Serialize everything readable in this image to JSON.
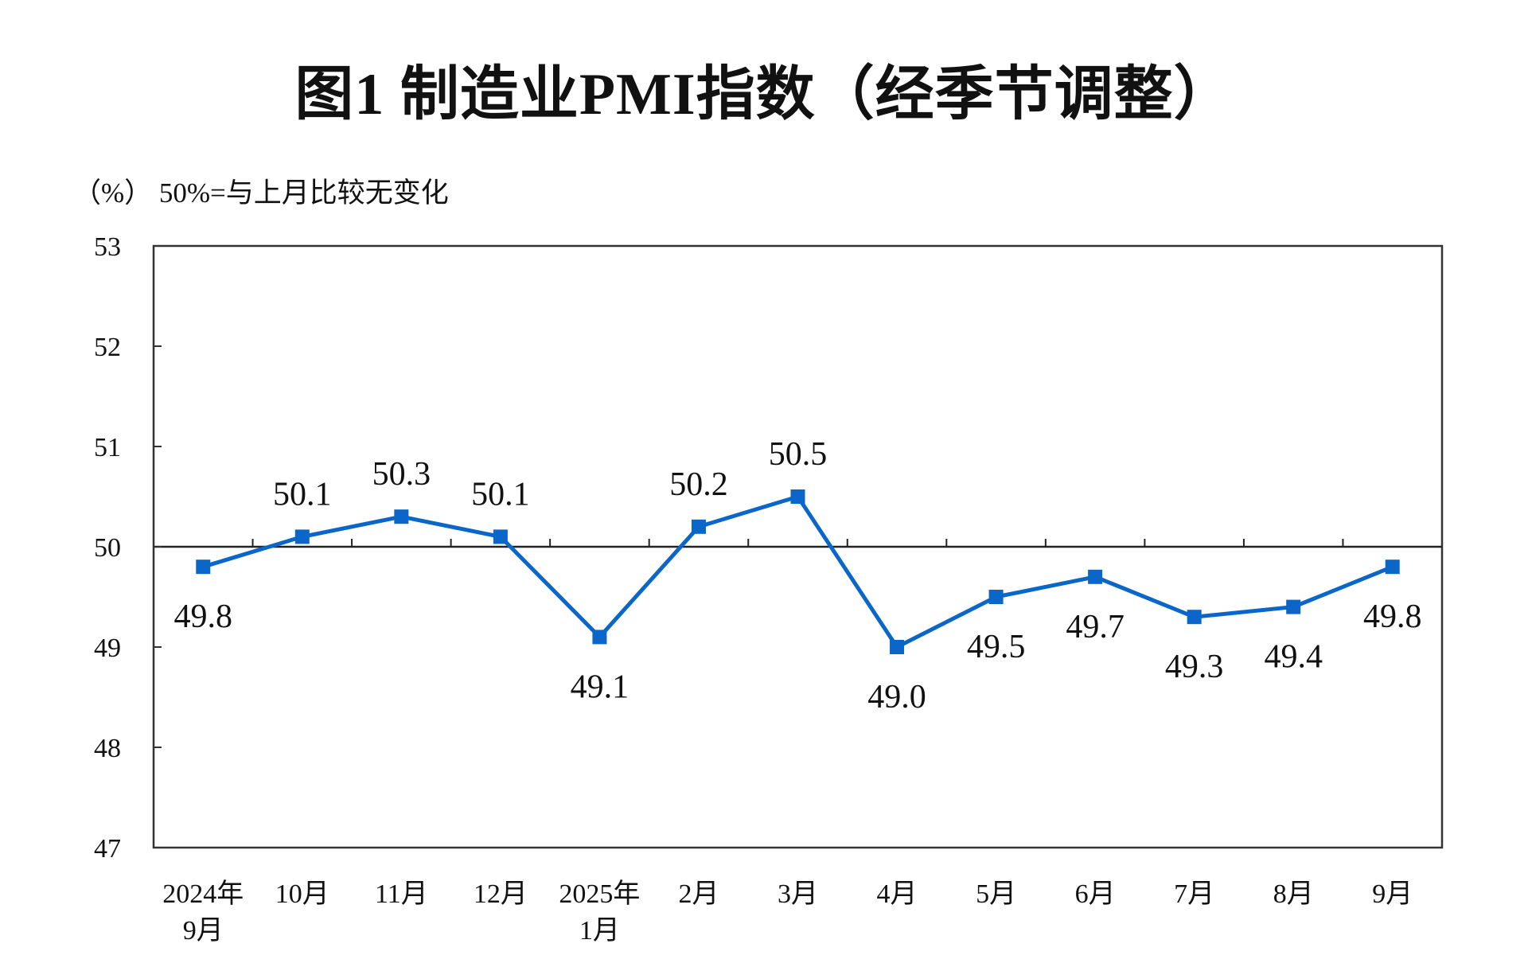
{
  "chart_data": {
    "type": "line",
    "title": "图1  制造业PMI指数（经季节调整）",
    "ylabel": "（%）  50%=与上月比较无变化",
    "xlabel": "",
    "ylim": [
      47,
      53
    ],
    "yticks": [
      47,
      48,
      49,
      50,
      51,
      52,
      53
    ],
    "reference_line": 50,
    "grid": false,
    "categories": [
      [
        "2024年",
        "9月"
      ],
      [
        "10月"
      ],
      [
        "11月"
      ],
      [
        "12月"
      ],
      [
        "2025年",
        "1月"
      ],
      [
        "2月"
      ],
      [
        "3月"
      ],
      [
        "4月"
      ],
      [
        "5月"
      ],
      [
        "6月"
      ],
      [
        "7月"
      ],
      [
        "8月"
      ],
      [
        "9月"
      ]
    ],
    "series": [
      {
        "values": [
          49.8,
          50.1,
          50.3,
          50.1,
          49.1,
          50.2,
          50.5,
          49.0,
          49.5,
          49.7,
          49.3,
          49.4,
          49.8
        ],
        "labels": [
          "49.8",
          "50.1",
          "50.3",
          "50.1",
          "49.1",
          "50.2",
          "50.5",
          "49.0",
          "49.5",
          "49.7",
          "49.3",
          "49.4",
          "49.8"
        ],
        "label_placement": [
          "below",
          "above",
          "above",
          "above",
          "below",
          "above",
          "above",
          "below",
          "below",
          "below",
          "below",
          "below",
          "below"
        ],
        "color": "#0a66c8",
        "marker": "square"
      }
    ]
  }
}
